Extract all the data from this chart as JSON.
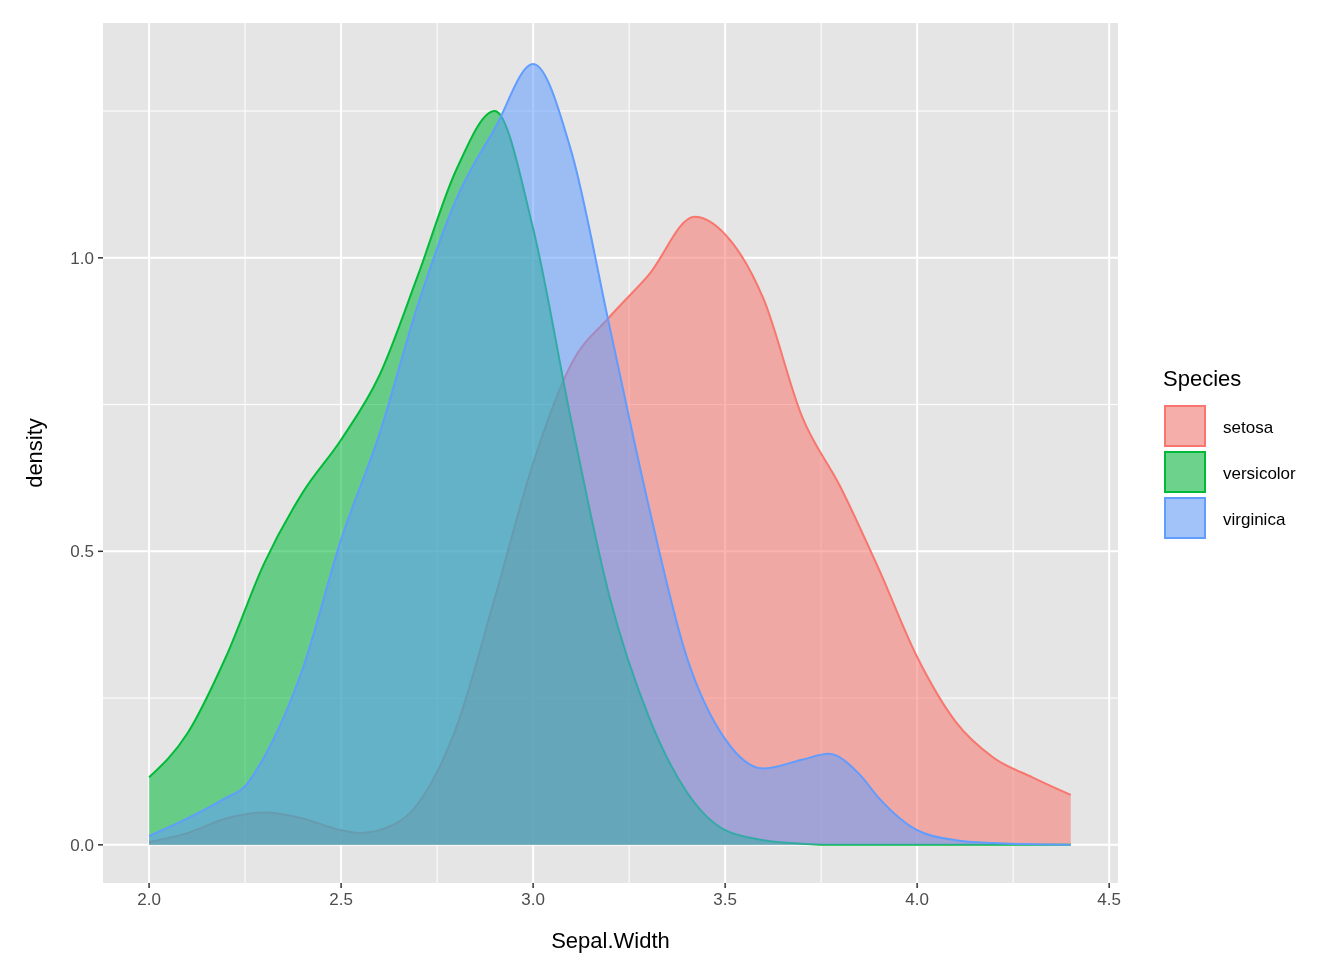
{
  "chart_data": {
    "type": "area",
    "xlabel": "Sepal.Width",
    "ylabel": "density",
    "legend_title": "Species",
    "legend": "right",
    "grid": true,
    "xlim": [
      1.88,
      4.523
    ],
    "ylim": [
      -0.065,
      1.4
    ],
    "xticks": [
      {
        "value": 2,
        "label": "2.0"
      },
      {
        "value": 2.5,
        "label": "2.5"
      },
      {
        "value": 3,
        "label": "3.0"
      },
      {
        "value": 3.5,
        "label": "3.5"
      },
      {
        "value": 4,
        "label": "4.0"
      },
      {
        "value": 4.5,
        "label": "4.5"
      }
    ],
    "yticks": [
      {
        "value": 0,
        "label": "0.0"
      },
      {
        "value": 0.5,
        "label": "0.5"
      },
      {
        "value": 1,
        "label": "1.0"
      }
    ],
    "series": [
      {
        "name": "setosa",
        "color": "#f8766d",
        "x": [
          2.0,
          2.1,
          2.2,
          2.3,
          2.4,
          2.5,
          2.55,
          2.6,
          2.7,
          2.8,
          2.9,
          3.0,
          3.1,
          3.2,
          3.3,
          3.42,
          3.5,
          3.6,
          3.7,
          3.8,
          3.9,
          4.0,
          4.1,
          4.2,
          4.3,
          4.4
        ],
        "values": [
          0.005,
          0.02,
          0.045,
          0.055,
          0.045,
          0.025,
          0.02,
          0.025,
          0.07,
          0.2,
          0.42,
          0.65,
          0.82,
          0.9,
          0.97,
          1.07,
          1.04,
          0.93,
          0.73,
          0.61,
          0.47,
          0.32,
          0.21,
          0.148,
          0.115,
          0.085
        ]
      },
      {
        "name": "versicolor",
        "color": "#00ba38",
        "x": [
          2.0,
          2.1,
          2.2,
          2.3,
          2.4,
          2.5,
          2.6,
          2.7,
          2.8,
          2.9,
          3.0,
          3.1,
          3.2,
          3.3,
          3.4,
          3.5,
          3.6,
          3.7,
          3.8,
          4.0,
          4.2,
          4.4
        ],
        "values": [
          0.115,
          0.19,
          0.32,
          0.48,
          0.6,
          0.69,
          0.8,
          0.97,
          1.15,
          1.25,
          1.05,
          0.72,
          0.42,
          0.22,
          0.09,
          0.025,
          0.008,
          0.002,
          0,
          0,
          0,
          0
        ]
      },
      {
        "name": "virginica",
        "color": "#619cff",
        "x": [
          2.0,
          2.1,
          2.2,
          2.25,
          2.3,
          2.4,
          2.5,
          2.6,
          2.7,
          2.8,
          2.9,
          3.0,
          3.1,
          3.2,
          3.3,
          3.4,
          3.5,
          3.6,
          3.7,
          3.77,
          3.85,
          3.9,
          4.0,
          4.1,
          4.2,
          4.3,
          4.4
        ],
        "values": [
          0.015,
          0.045,
          0.08,
          0.1,
          0.15,
          0.3,
          0.52,
          0.7,
          0.92,
          1.1,
          1.22,
          1.33,
          1.18,
          0.88,
          0.58,
          0.32,
          0.18,
          0.13,
          0.145,
          0.155,
          0.12,
          0.08,
          0.025,
          0.008,
          0.003,
          0.001,
          0
        ]
      }
    ]
  }
}
